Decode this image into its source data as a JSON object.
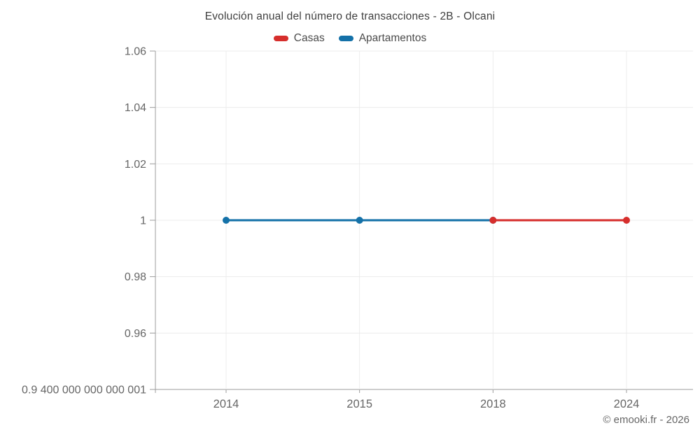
{
  "chart_data": {
    "type": "line",
    "title": "Evolución anual del número de transacciones - 2B - Olcani",
    "categories": [
      "2014",
      "2015",
      "2018",
      "2024"
    ],
    "series": [
      {
        "name": "Casas",
        "color": "#d62e2c",
        "points": [
          {
            "category": "2018",
            "value": 1
          },
          {
            "category": "2024",
            "value": 1
          }
        ]
      },
      {
        "name": "Apartamentos",
        "color": "#1471a8",
        "points": [
          {
            "category": "2014",
            "value": 1
          },
          {
            "category": "2015",
            "value": 1
          },
          {
            "category": "2018",
            "value": 1
          }
        ]
      }
    ],
    "ylim": [
      0.94,
      1.06
    ],
    "yticks": [
      {
        "value": 0.94,
        "label": "0.9 400 000 000 000 001"
      },
      {
        "value": 0.96,
        "label": "0.96"
      },
      {
        "value": 0.98,
        "label": "0.98"
      },
      {
        "value": 1,
        "label": "1"
      },
      {
        "value": 1.02,
        "label": "1.02"
      },
      {
        "value": 1.04,
        "label": "1.04"
      },
      {
        "value": 1.06,
        "label": "1.06"
      }
    ],
    "grid": true,
    "legend_position": "top",
    "axis_color": "#9c9c9c",
    "grid_color": "#ececec",
    "label_color": "#666666",
    "title_color": "#3f3f3f"
  },
  "footer": {
    "text": "© emooki.fr - 2026"
  }
}
